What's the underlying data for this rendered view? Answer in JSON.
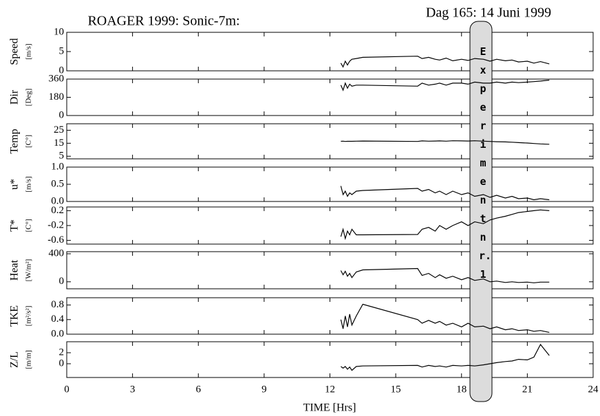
{
  "title": "ROAGER 1999: Sonic-7m:",
  "date": "Dag 165: 14 Juni 1999",
  "annotation": "Experiment nr. 1",
  "x_axis": {
    "label": "TIME [Hrs]",
    "xlim": [
      0,
      24
    ],
    "xticks": [
      0,
      3,
      6,
      9,
      12,
      15,
      18,
      21,
      24
    ]
  },
  "chart_data": [
    {
      "type": "line",
      "y_label": "Speed",
      "y_units": "[m/s]",
      "color": "#000000",
      "ylim": [
        0,
        10
      ],
      "yticks": [
        0,
        5,
        10
      ],
      "x": [
        12.5,
        12.6,
        12.7,
        12.8,
        12.9,
        13.0,
        13.2,
        13.5,
        16.0,
        16.2,
        16.5,
        16.8,
        17.0,
        17.3,
        17.6,
        18.0,
        18.3,
        18.6,
        19.0,
        19.3,
        19.6,
        20.0,
        20.3,
        20.6,
        21.0,
        21.3,
        21.6,
        22.0
      ],
      "values": [
        2,
        1,
        2.5,
        1.5,
        2.5,
        3,
        3.2,
        3.5,
        3.8,
        3.2,
        3.5,
        3.0,
        2.8,
        3.3,
        2.6,
        3.0,
        2.7,
        3.2,
        3.0,
        2.5,
        3.0,
        2.6,
        2.8,
        2.3,
        2.5,
        2.0,
        2.4,
        1.8
      ]
    },
    {
      "type": "line",
      "y_label": "Dir",
      "y_units": "[Deg]",
      "color": "#000000",
      "ylim": [
        0,
        360
      ],
      "yticks": [
        0,
        180,
        360
      ],
      "x": [
        12.5,
        12.6,
        12.7,
        12.8,
        12.9,
        13.0,
        13.2,
        13.5,
        16.0,
        16.2,
        16.5,
        16.8,
        17.0,
        17.3,
        17.6,
        18.0,
        18.3,
        18.6,
        19.0,
        19.3,
        19.6,
        20.0,
        20.3,
        20.6,
        21.0,
        21.3,
        21.6,
        22.0
      ],
      "values": [
        300,
        250,
        320,
        270,
        310,
        290,
        300,
        300,
        290,
        320,
        300,
        310,
        320,
        300,
        320,
        320,
        310,
        330,
        320,
        320,
        330,
        320,
        330,
        325,
        330,
        335,
        340,
        350
      ]
    },
    {
      "type": "line",
      "y_label": "Temp",
      "y_units": "[C°]",
      "color": "#000000",
      "ylim": [
        3,
        30
      ],
      "yticks": [
        5,
        15,
        25
      ],
      "x": [
        12.5,
        12.6,
        12.7,
        12.8,
        12.9,
        13.0,
        13.2,
        13.5,
        16.0,
        16.2,
        16.5,
        16.8,
        17.0,
        17.3,
        17.6,
        18.0,
        18.3,
        18.6,
        19.0,
        19.3,
        19.6,
        20.0,
        20.3,
        20.6,
        21.0,
        21.3,
        21.6,
        22.0
      ],
      "values": [
        16.5,
        16.6,
        16.4,
        16.5,
        16.5,
        16.5,
        16.6,
        16.7,
        16.4,
        16.8,
        16.6,
        16.7,
        16.8,
        16.6,
        16.9,
        16.8,
        16.7,
        16.9,
        16.6,
        16.4,
        16.2,
        16.0,
        15.8,
        15.5,
        15.2,
        14.8,
        14.5,
        14.2
      ]
    },
    {
      "type": "line",
      "y_label": "u*",
      "y_units": "[m/s]",
      "color": "#000000",
      "ylim": [
        0,
        1
      ],
      "yticks": [
        {
          "value": 0,
          "label": "0.0"
        },
        0.5,
        {
          "value": 1,
          "label": "1.0"
        }
      ],
      "x": [
        12.5,
        12.6,
        12.7,
        12.8,
        12.9,
        13.0,
        13.2,
        13.5,
        16.0,
        16.2,
        16.5,
        16.8,
        17.0,
        17.3,
        17.6,
        18.0,
        18.3,
        18.6,
        19.0,
        19.3,
        19.6,
        20.0,
        20.3,
        20.6,
        21.0,
        21.3,
        21.6,
        22.0
      ],
      "values": [
        0.45,
        0.2,
        0.3,
        0.15,
        0.25,
        0.2,
        0.3,
        0.32,
        0.38,
        0.3,
        0.35,
        0.25,
        0.3,
        0.2,
        0.3,
        0.2,
        0.25,
        0.15,
        0.2,
        0.12,
        0.18,
        0.1,
        0.15,
        0.08,
        0.1,
        0.05,
        0.08,
        0.05
      ]
    },
    {
      "type": "line",
      "y_label": "T*",
      "y_units": "[C°]",
      "color": "#000000",
      "ylim": [
        -0.7,
        0.3
      ],
      "yticks": [
        -0.6,
        -0.2,
        0.2
      ],
      "x": [
        12.5,
        12.6,
        12.7,
        12.8,
        12.9,
        13.0,
        13.2,
        13.5,
        16.0,
        16.2,
        16.5,
        16.8,
        17.0,
        17.3,
        17.6,
        18.0,
        18.3,
        18.6,
        19.0,
        19.3,
        19.6,
        20.0,
        20.3,
        20.6,
        21.0,
        21.3,
        21.6,
        22.0
      ],
      "values": [
        -0.5,
        -0.3,
        -0.55,
        -0.35,
        -0.45,
        -0.3,
        -0.45,
        -0.45,
        -0.44,
        -0.3,
        -0.25,
        -0.35,
        -0.2,
        -0.3,
        -0.2,
        -0.1,
        -0.2,
        -0.1,
        -0.15,
        -0.05,
        0.0,
        0.05,
        0.1,
        0.15,
        0.18,
        0.2,
        0.22,
        0.2
      ]
    },
    {
      "type": "line",
      "y_label": "Heat",
      "y_units": "[W/m²]",
      "color": "#000000",
      "ylim": [
        -100,
        430
      ],
      "yticks": [
        0,
        400
      ],
      "x": [
        12.5,
        12.6,
        12.7,
        12.8,
        12.9,
        13.0,
        13.2,
        13.5,
        16.0,
        16.2,
        16.5,
        16.8,
        17.0,
        17.3,
        17.6,
        18.0,
        18.3,
        18.6,
        19.0,
        19.3,
        19.6,
        20.0,
        20.3,
        20.6,
        21.0,
        21.3,
        21.6,
        22.0
      ],
      "values": [
        160,
        100,
        150,
        80,
        120,
        60,
        140,
        170,
        190,
        90,
        120,
        60,
        100,
        50,
        80,
        30,
        60,
        20,
        40,
        0,
        10,
        -10,
        0,
        -10,
        -5,
        -15,
        -5,
        -5
      ]
    },
    {
      "type": "line",
      "y_label": "TKE",
      "y_units": "[m²/s²]",
      "color": "#000000",
      "ylim": [
        0,
        1
      ],
      "yticks": [
        {
          "value": 0,
          "label": "0.0"
        },
        0.4,
        0.8
      ],
      "x": [
        12.5,
        12.6,
        12.7,
        12.8,
        12.9,
        13.0,
        13.2,
        13.5,
        16.0,
        16.2,
        16.5,
        16.8,
        17.0,
        17.3,
        17.6,
        18.0,
        18.3,
        18.6,
        19.0,
        19.3,
        19.6,
        20.0,
        20.3,
        20.6,
        21.0,
        21.3,
        21.6,
        22.0
      ],
      "values": [
        0.4,
        0.15,
        0.5,
        0.2,
        0.55,
        0.25,
        0.5,
        0.82,
        0.4,
        0.3,
        0.38,
        0.3,
        0.35,
        0.25,
        0.3,
        0.2,
        0.3,
        0.2,
        0.22,
        0.15,
        0.2,
        0.12,
        0.15,
        0.1,
        0.12,
        0.08,
        0.1,
        0.05
      ]
    },
    {
      "type": "line",
      "y_label": "Z/L",
      "y_units": "[m/m]",
      "color": "#000000",
      "ylim": [
        -2.5,
        4
      ],
      "yticks": [
        0,
        2
      ],
      "x": [
        12.5,
        12.6,
        12.7,
        12.8,
        12.9,
        13.0,
        13.2,
        13.5,
        16.0,
        16.2,
        16.5,
        16.8,
        17.0,
        17.3,
        17.6,
        18.0,
        18.3,
        18.6,
        19.0,
        19.3,
        19.6,
        20.0,
        20.3,
        20.6,
        21.0,
        21.3,
        21.6,
        22.0
      ],
      "values": [
        -0.5,
        -0.8,
        -0.5,
        -1.0,
        -0.6,
        -1.2,
        -0.5,
        -0.4,
        -0.3,
        -0.6,
        -0.3,
        -0.5,
        -0.4,
        -0.6,
        -0.3,
        -0.4,
        -0.3,
        -0.4,
        -0.2,
        0,
        0.2,
        0.4,
        0.5,
        0.8,
        0.7,
        1.2,
        3.5,
        1.5
      ]
    }
  ]
}
